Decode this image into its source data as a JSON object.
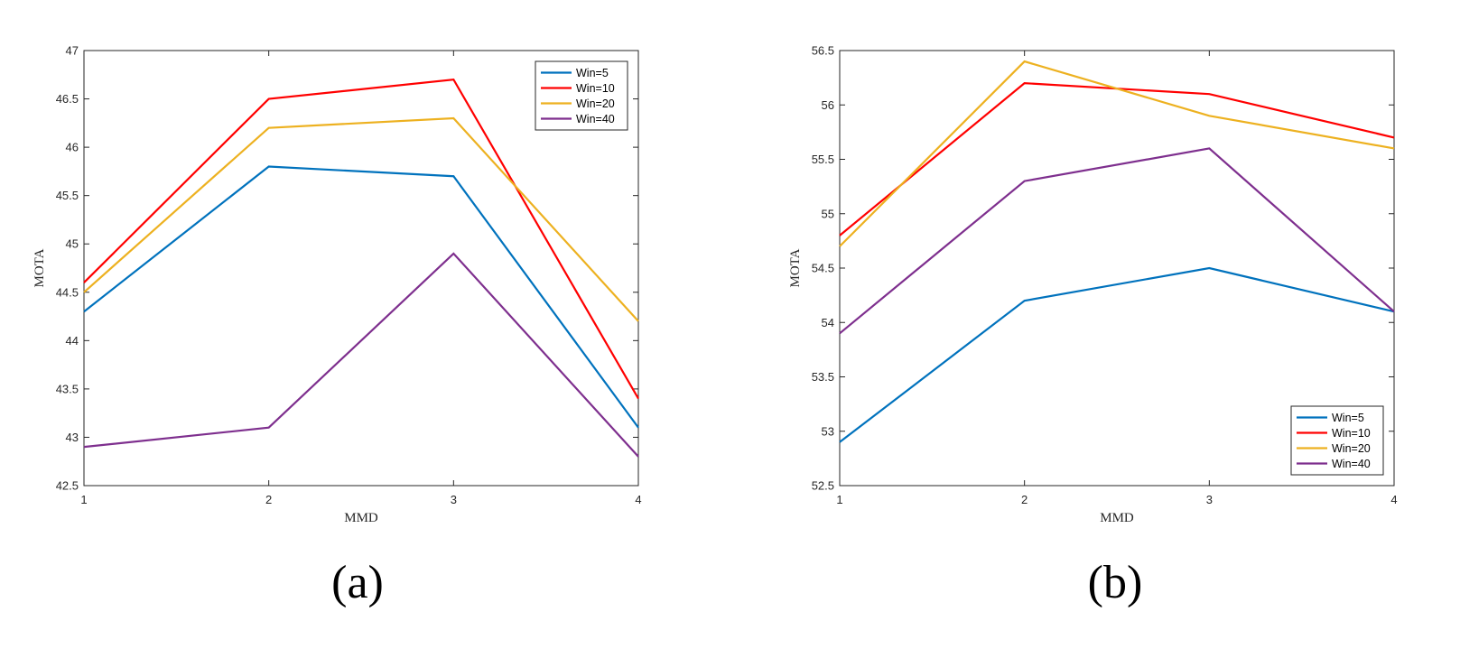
{
  "captions": [
    "(a)",
    "(b)"
  ],
  "colors": {
    "Win=5": "#0072BD",
    "Win=10": "#FF0000",
    "Win=20": "#EDB120",
    "Win=40": "#7E2F8E",
    "axis": "#262626",
    "legend_border": "#262626"
  },
  "chart_data": [
    {
      "type": "line",
      "caption": "(a)",
      "xlabel": "MMD",
      "ylabel": "MOTA",
      "x": [
        1,
        2,
        3,
        4
      ],
      "xlim": [
        1,
        4
      ],
      "ylim": [
        42.5,
        47
      ],
      "xticks": [
        "1",
        "2",
        "3",
        "4"
      ],
      "yticks": [
        "42.5",
        "43",
        "43.5",
        "44",
        "44.5",
        "45",
        "45.5",
        "46",
        "46.5",
        "47"
      ],
      "grid": false,
      "legend": "top-right",
      "series": [
        {
          "name": "Win=5",
          "values": [
            44.3,
            45.8,
            45.7,
            43.1
          ]
        },
        {
          "name": "Win=10",
          "values": [
            44.6,
            46.5,
            46.7,
            43.4
          ]
        },
        {
          "name": "Win=20",
          "values": [
            44.5,
            46.2,
            46.3,
            44.2
          ]
        },
        {
          "name": "Win=40",
          "values": [
            42.9,
            43.1,
            44.9,
            42.8
          ]
        }
      ]
    },
    {
      "type": "line",
      "caption": "(b)",
      "xlabel": "MMD",
      "ylabel": "MOTA",
      "x": [
        1,
        2,
        3,
        4
      ],
      "xlim": [
        1,
        4
      ],
      "ylim": [
        52.5,
        56.5
      ],
      "xticks": [
        "1",
        "2",
        "3",
        "4"
      ],
      "yticks": [
        "52.5",
        "53",
        "53.5",
        "54",
        "54.5",
        "55",
        "55.5",
        "56",
        "56.5"
      ],
      "grid": false,
      "legend": "bottom-right",
      "series": [
        {
          "name": "Win=5",
          "values": [
            52.9,
            54.2,
            54.5,
            54.1
          ]
        },
        {
          "name": "Win=10",
          "values": [
            54.8,
            56.2,
            56.1,
            55.7
          ]
        },
        {
          "name": "Win=20",
          "values": [
            54.7,
            56.4,
            55.9,
            55.6
          ]
        },
        {
          "name": "Win=40",
          "values": [
            53.9,
            55.3,
            55.6,
            54.1
          ]
        }
      ]
    }
  ]
}
